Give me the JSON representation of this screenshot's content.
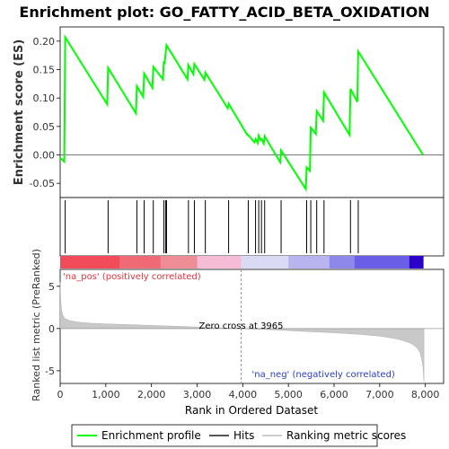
{
  "chart_data": {
    "type": "line",
    "title": "Enrichment plot: GO_FATTY_ACID_BETA_OXIDATION",
    "top_panel": {
      "ylabel": "Enrichment score (ES)",
      "ylim": [
        -0.075,
        0.225
      ],
      "yticks": [
        -0.05,
        0.0,
        0.05,
        0.1,
        0.15,
        0.2
      ],
      "ytick_labels": [
        "-0.05",
        "0.00",
        "0.05",
        "0.10",
        "0.15",
        "0.20"
      ],
      "series": [
        {
          "name": "Enrichment profile",
          "color": "#00ff00",
          "x": [
            0,
            90,
            110,
            1030,
            1050,
            1660,
            1680,
            1820,
            1840,
            2020,
            2040,
            2250,
            2270,
            2290,
            2310,
            2330,
            2790,
            2810,
            2920,
            2940,
            3160,
            3180,
            3670,
            3690,
            4100,
            4120,
            4260,
            4280,
            4330,
            4350,
            4390,
            4410,
            4460,
            4480,
            4820,
            4840,
            5380,
            5400,
            5470,
            5490,
            5600,
            5620,
            5760,
            5780,
            6340,
            6360,
            6510,
            6530,
            7950
          ],
          "y": [
            -0.005,
            -0.012,
            0.207,
            0.089,
            0.153,
            0.073,
            0.121,
            0.102,
            0.143,
            0.118,
            0.155,
            0.133,
            0.163,
            0.162,
            0.178,
            0.193,
            0.133,
            0.158,
            0.142,
            0.16,
            0.132,
            0.145,
            0.082,
            0.09,
            0.035,
            0.035,
            0.022,
            0.028,
            0.021,
            0.034,
            0.026,
            0.028,
            0.02,
            0.033,
            -0.013,
            0.008,
            -0.06,
            -0.022,
            -0.028,
            0.048,
            0.037,
            0.077,
            0.06,
            0.11,
            0.035,
            0.116,
            0.093,
            0.182,
            0.0
          ]
        }
      ]
    },
    "hits": {
      "name": "Hits",
      "x": [
        110,
        1050,
        1680,
        1840,
        2040,
        2270,
        2310,
        2330,
        2810,
        2940,
        3180,
        3690,
        4120,
        4280,
        4350,
        4410,
        4480,
        4840,
        5400,
        5490,
        5620,
        5780,
        6360,
        6530
      ]
    },
    "bottom_panel": {
      "name": "Ranking metric scores",
      "ylabel": "Ranked list metric (PreRanked)",
      "ylim": [
        -6.5,
        7
      ],
      "yticks": [
        -5,
        0,
        5
      ],
      "ytick_labels": [
        "-5",
        "0",
        "5"
      ],
      "zero_cross_x": 3965,
      "zero_cross_label": "Zero cross at 3965",
      "pos_label": "'na_pos' (positively correlated)",
      "neg_label": "'na_neg' (negatively correlated)",
      "metric_x": [
        0,
        10,
        30,
        60,
        100,
        200,
        400,
        700,
        1000,
        1500,
        2000,
        2500,
        3000,
        3500,
        3965,
        4500,
        5000,
        5500,
        6000,
        6500,
        7000,
        7300,
        7500,
        7700,
        7800,
        7880,
        7920,
        7950,
        7970
      ],
      "metric_y": [
        5.5,
        3.5,
        2.2,
        1.6,
        1.2,
        0.95,
        0.75,
        0.62,
        0.55,
        0.46,
        0.37,
        0.28,
        0.18,
        0.08,
        0.0,
        -0.12,
        -0.24,
        -0.38,
        -0.5,
        -0.66,
        -0.9,
        -1.15,
        -1.4,
        -1.8,
        -2.2,
        -2.8,
        -3.6,
        -4.6,
        -6.3
      ]
    },
    "xlabel": "Rank in Ordered Dataset",
    "xlim": [
      0,
      8400
    ],
    "xticks": [
      0,
      1000,
      2000,
      3000,
      4000,
      5000,
      6000,
      7000,
      8000
    ],
    "xtick_labels": [
      "0",
      "1,000",
      "2,000",
      "3,000",
      "4,000",
      "5,000",
      "6,000",
      "7,000",
      "8,000"
    ],
    "gradient_bar": {
      "stops": [
        "#f24b59",
        "#f24b59",
        "#ee8a92",
        "#f8bcd8",
        "#d8d8f4",
        "#a8a4f0",
        "#6060e6",
        "#1a00c8"
      ],
      "segments": [
        {
          "from": 0,
          "to": 1300,
          "color": "#f24b59"
        },
        {
          "from": 1300,
          "to": 2200,
          "color": "#f06a76"
        },
        {
          "from": 2200,
          "to": 3000,
          "color": "#ef8d96"
        },
        {
          "from": 3000,
          "to": 3965,
          "color": "#f6bcd6"
        },
        {
          "from": 3965,
          "to": 5000,
          "color": "#dadaf5"
        },
        {
          "from": 5000,
          "to": 5900,
          "color": "#b8b4f0"
        },
        {
          "from": 5900,
          "to": 6450,
          "color": "#8e88ea"
        },
        {
          "from": 6450,
          "to": 7650,
          "color": "#6a5ee6"
        },
        {
          "from": 7650,
          "to": 7950,
          "color": "#2a00c8"
        }
      ]
    },
    "legend": [
      {
        "label": "Enrichment profile",
        "color": "#00ff00"
      },
      {
        "label": "Hits",
        "color": "#555555"
      },
      {
        "label": "Ranking metric scores",
        "color": "#cccccc"
      }
    ],
    "grid": false,
    "legend_position": "bottom"
  }
}
